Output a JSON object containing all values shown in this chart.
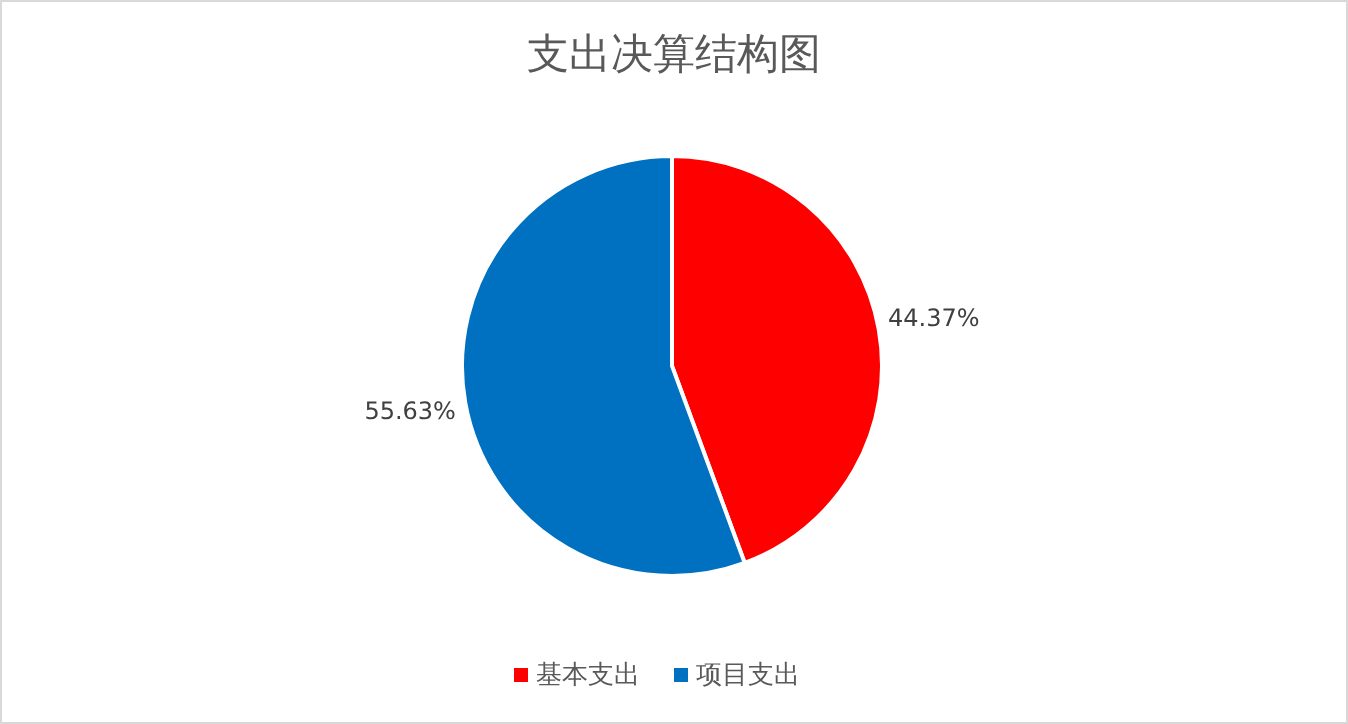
{
  "chart_data": {
    "type": "pie",
    "title": "支出决算结构图",
    "categories": [
      "基本支出",
      "项目支出"
    ],
    "values": [
      44.37,
      55.63
    ],
    "colors": [
      "#ff0000",
      "#0070c0"
    ],
    "data_labels": true,
    "value_labels": [
      "44.37%",
      "55.63%"
    ],
    "legend": "bottom"
  }
}
